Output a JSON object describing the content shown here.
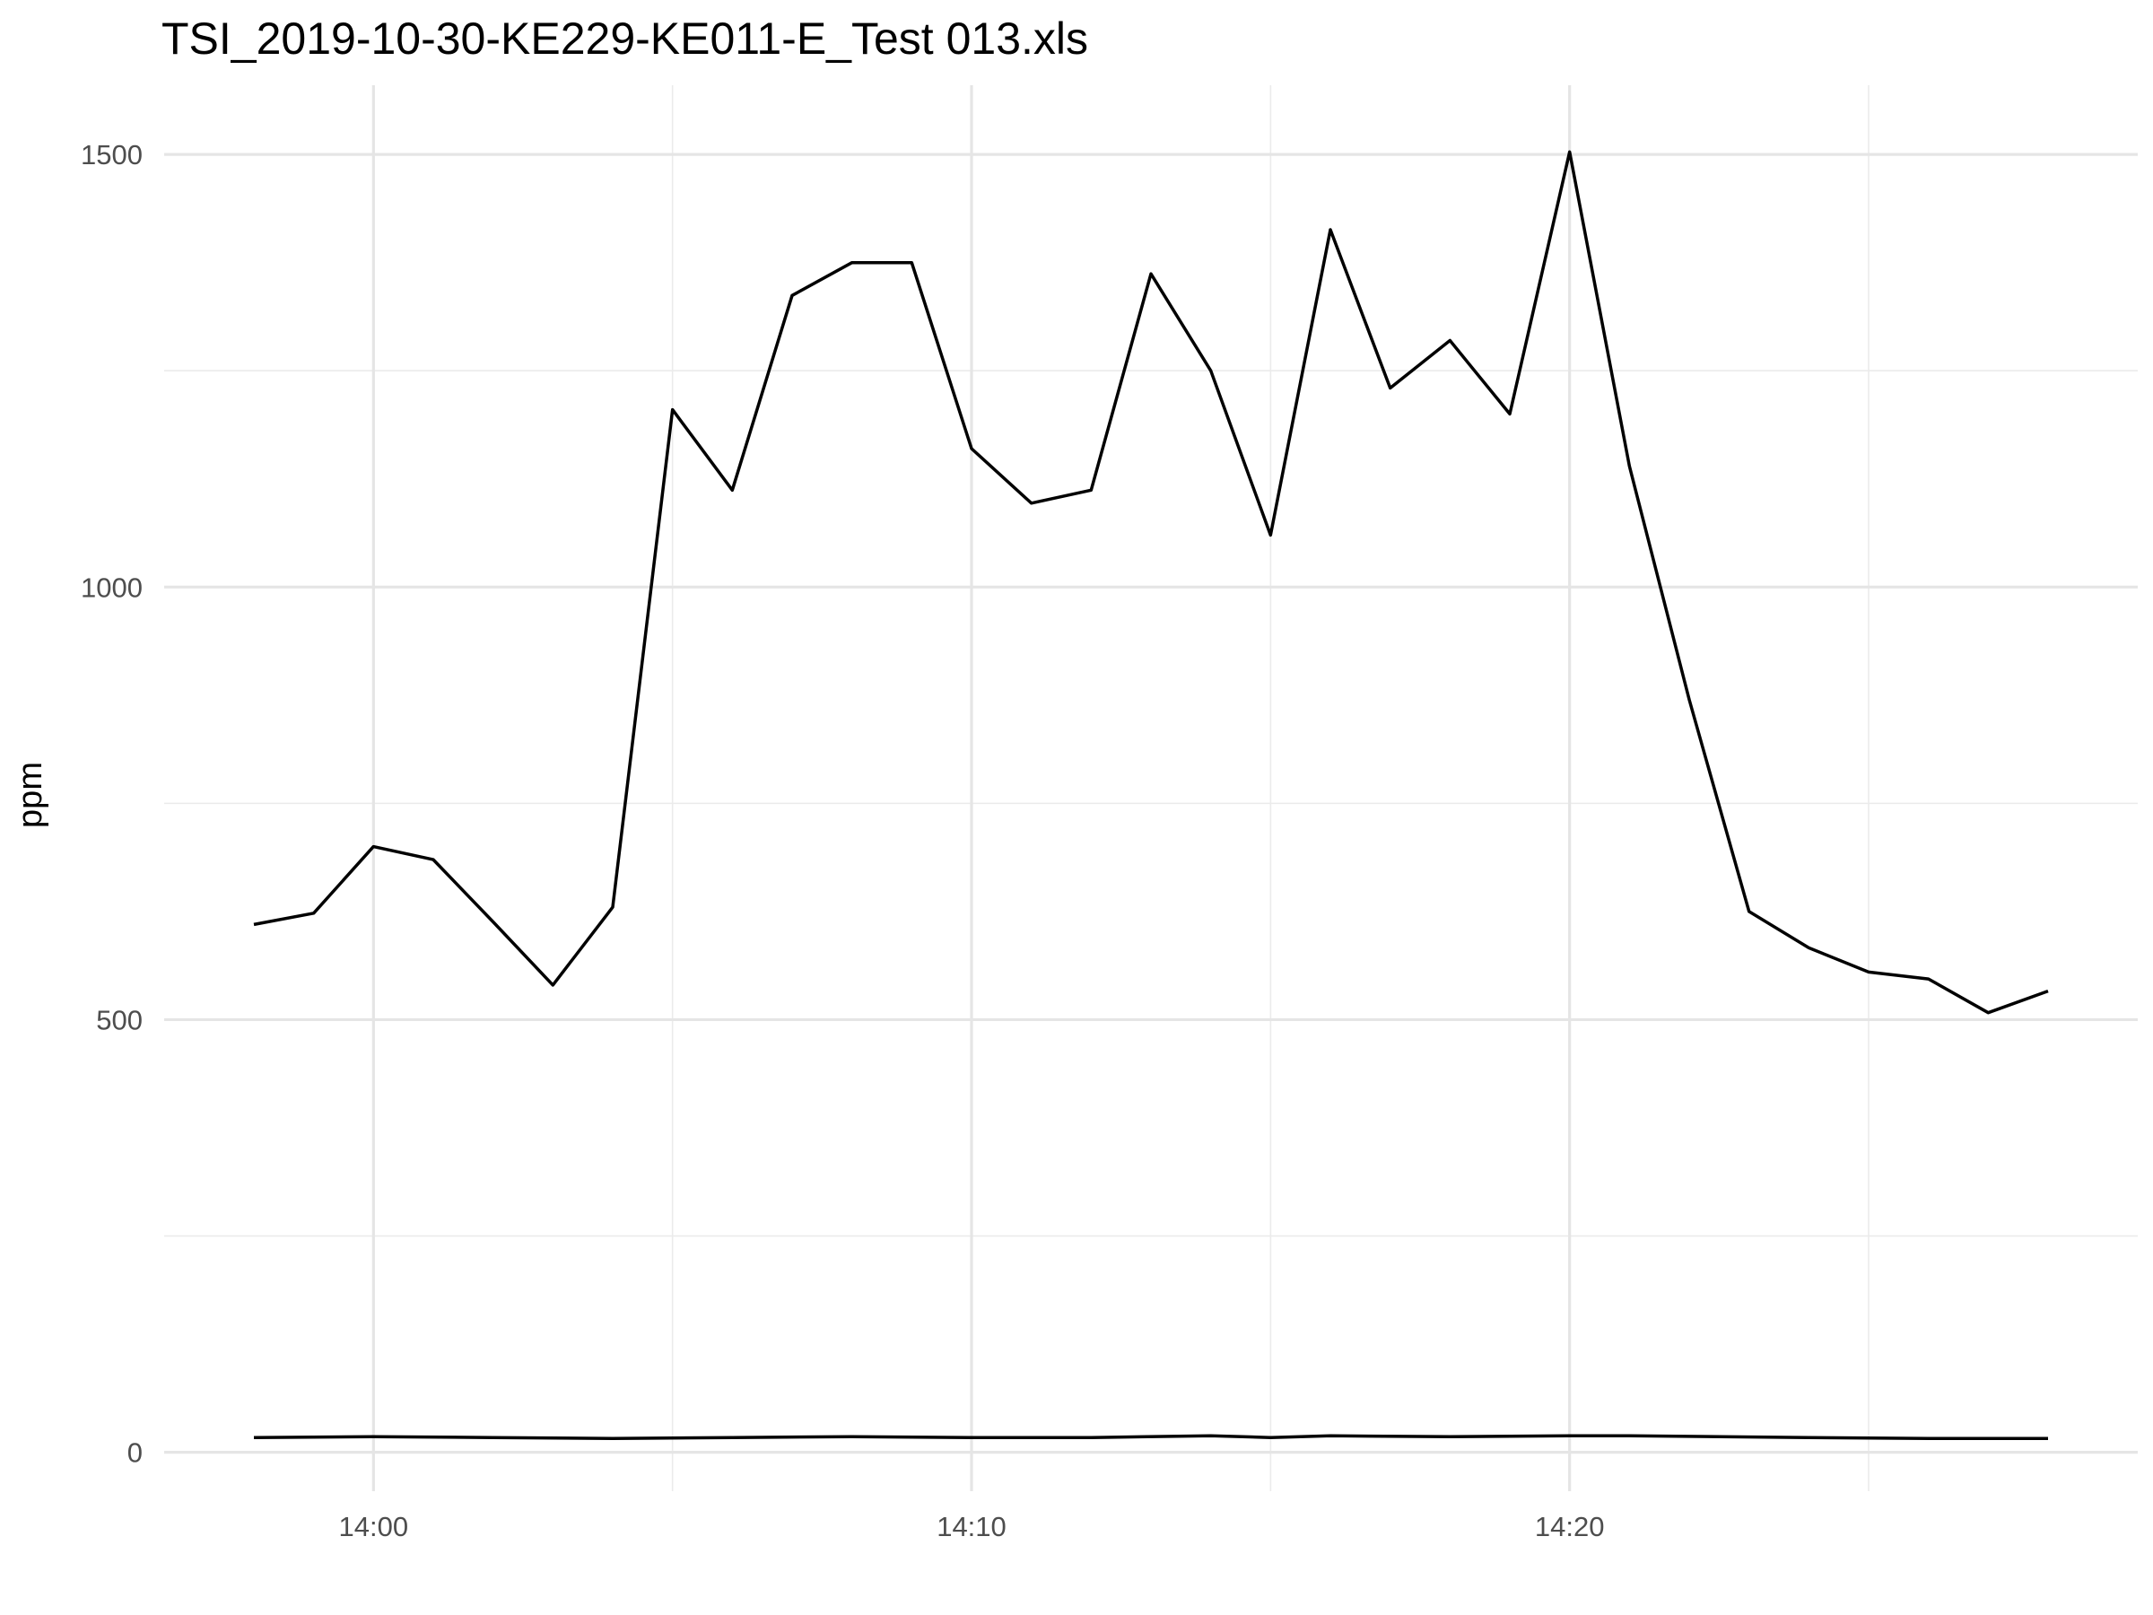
{
  "chart_data": {
    "type": "line",
    "title": "TSI_2019-10-30-KE229-KE011-E_Test 013.xls",
    "xlabel": "",
    "ylabel": "ppm",
    "x_unit": "time",
    "xlim": [
      "13:56:30",
      "14:29:30"
    ],
    "ylim": [
      -45,
      1580
    ],
    "x_ticks": [
      {
        "label": "14:00",
        "value": "14:00"
      },
      {
        "label": "14:10",
        "value": "14:10"
      },
      {
        "label": "14:20",
        "value": "14:20"
      }
    ],
    "x_minor_ticks": [
      "14:05",
      "14:15",
      "14:25"
    ],
    "y_ticks": [
      0,
      500,
      1000,
      1500
    ],
    "y_minor_ticks": [
      250,
      750,
      1250
    ],
    "grid": true,
    "legend": "none",
    "series": [
      {
        "color": "#000000",
        "points": [
          {
            "x": "13:58",
            "y": 610
          },
          {
            "x": "13:59",
            "y": 623
          },
          {
            "x": "14:00",
            "y": 700
          },
          {
            "x": "14:01",
            "y": 685
          },
          {
            "x": "14:02",
            "y": 613
          },
          {
            "x": "14:03",
            "y": 540
          },
          {
            "x": "14:04",
            "y": 630
          },
          {
            "x": "14:05",
            "y": 1205
          },
          {
            "x": "14:06",
            "y": 1112
          },
          {
            "x": "14:07",
            "y": 1337
          },
          {
            "x": "14:08",
            "y": 1375
          },
          {
            "x": "14:09",
            "y": 1375
          },
          {
            "x": "14:10",
            "y": 1160
          },
          {
            "x": "14:11",
            "y": 1097
          },
          {
            "x": "14:12",
            "y": 1112
          },
          {
            "x": "14:13",
            "y": 1362
          },
          {
            "x": "14:14",
            "y": 1250
          },
          {
            "x": "14:15",
            "y": 1060
          },
          {
            "x": "14:16",
            "y": 1413
          },
          {
            "x": "14:17",
            "y": 1230
          },
          {
            "x": "14:18",
            "y": 1285
          },
          {
            "x": "14:19",
            "y": 1200
          },
          {
            "x": "14:20",
            "y": 1503
          },
          {
            "x": "14:21",
            "y": 1140
          },
          {
            "x": "14:22",
            "y": 870
          },
          {
            "x": "14:23",
            "y": 625
          },
          {
            "x": "14:24",
            "y": 583
          },
          {
            "x": "14:25",
            "y": 555
          },
          {
            "x": "14:26",
            "y": 547
          },
          {
            "x": "14:27",
            "y": 508
          },
          {
            "x": "14:28",
            "y": 533
          }
        ]
      },
      {
        "color": "#000000",
        "points": [
          {
            "x": "13:58",
            "y": 17
          },
          {
            "x": "14:00",
            "y": 18
          },
          {
            "x": "14:02",
            "y": 17
          },
          {
            "x": "14:04",
            "y": 16
          },
          {
            "x": "14:06",
            "y": 17
          },
          {
            "x": "14:08",
            "y": 18
          },
          {
            "x": "14:10",
            "y": 17
          },
          {
            "x": "14:12",
            "y": 17
          },
          {
            "x": "14:14",
            "y": 19
          },
          {
            "x": "14:15",
            "y": 17
          },
          {
            "x": "14:16",
            "y": 19
          },
          {
            "x": "14:18",
            "y": 18
          },
          {
            "x": "14:20",
            "y": 19
          },
          {
            "x": "14:21",
            "y": 19
          },
          {
            "x": "14:24",
            "y": 17
          },
          {
            "x": "14:26",
            "y": 16
          },
          {
            "x": "14:28",
            "y": 16
          }
        ]
      }
    ]
  }
}
